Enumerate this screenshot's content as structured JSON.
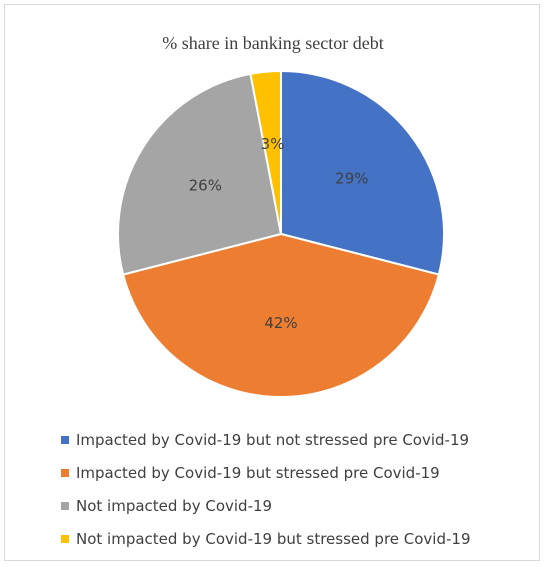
{
  "chart_data": {
    "type": "pie",
    "title": "% share in banking sector debt",
    "slices": [
      {
        "label": "Impacted by Covid-19 but not stressed pre Covid-19",
        "value": 29,
        "data_label": "29%",
        "color": "#4472C4"
      },
      {
        "label": "Impacted by Covid-19 but stressed pre Covid-19",
        "value": 42,
        "data_label": "42%",
        "color": "#ED7D31"
      },
      {
        "label": "Not impacted by Covid-19",
        "value": 26,
        "data_label": "26%",
        "color": "#A5A5A5"
      },
      {
        "label": "Not impacted by Covid-19 but stressed pre Covid-19",
        "value": 3,
        "data_label": "3%",
        "color": "#FFC000"
      }
    ],
    "legend_position": "bottom"
  }
}
